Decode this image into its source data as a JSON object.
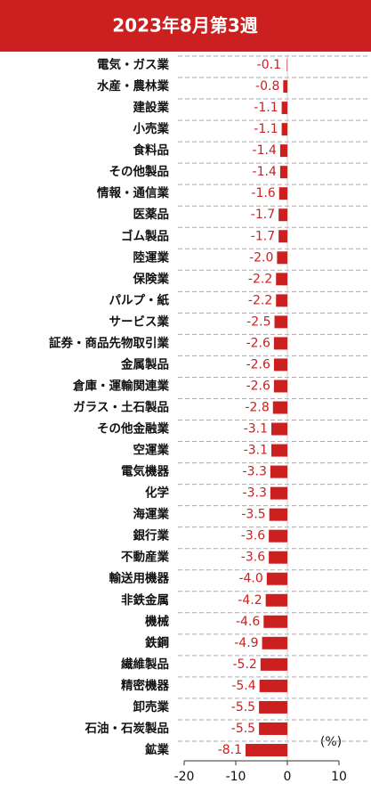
{
  "chart_data": {
    "type": "barh",
    "title": "2023年8月第3週",
    "unit_label": "(%)",
    "categories": [
      "電気・ガス業",
      "水産・農林業",
      "建設業",
      "小売業",
      "食料品",
      "その他製品",
      "情報・通信業",
      "医薬品",
      "ゴム製品",
      "陸運業",
      "保険業",
      "パルプ・紙",
      "サービス業",
      "証券・商品先物取引業",
      "金属製品",
      "倉庫・運輸関連業",
      "ガラス・土石製品",
      "その他金融業",
      "空運業",
      "電気機器",
      "化学",
      "海運業",
      "銀行業",
      "不動産業",
      "輸送用機器",
      "非鉄金属",
      "機械",
      "鉄鋼",
      "繊維製品",
      "精密機器",
      "卸売業",
      "石油・石炭製品",
      "鉱業"
    ],
    "values": [
      -0.1,
      -0.8,
      -1.1,
      -1.1,
      -1.4,
      -1.4,
      -1.6,
      -1.7,
      -1.7,
      -2.0,
      -2.2,
      -2.2,
      -2.5,
      -2.6,
      -2.6,
      -2.6,
      -2.8,
      -3.1,
      -3.1,
      -3.3,
      -3.3,
      -3.5,
      -3.6,
      -3.6,
      -4.0,
      -4.2,
      -4.6,
      -4.9,
      -5.2,
      -5.4,
      -5.5,
      -5.5,
      -8.1
    ],
    "value_labels": [
      "-0.1",
      "-0.8",
      "-1.1",
      "-1.1",
      "-1.4",
      "-1.4",
      "-1.6",
      "-1.7",
      "-1.7",
      "-2.0",
      "-2.2",
      "-2.2",
      "-2.5",
      "-2.6",
      "-2.6",
      "-2.6",
      "-2.8",
      "-3.1",
      "-3.1",
      "-3.3",
      "-3.3",
      "-3.5",
      "-3.6",
      "-3.6",
      "-4.0",
      "-4.2",
      "-4.6",
      "-4.9",
      "-5.2",
      "-5.4",
      "-5.5",
      "-5.5",
      "-8.1"
    ],
    "color": "#cc1f1f",
    "xlim": [
      -20,
      10
    ],
    "xticks": [
      -20,
      -10,
      0,
      10
    ]
  }
}
